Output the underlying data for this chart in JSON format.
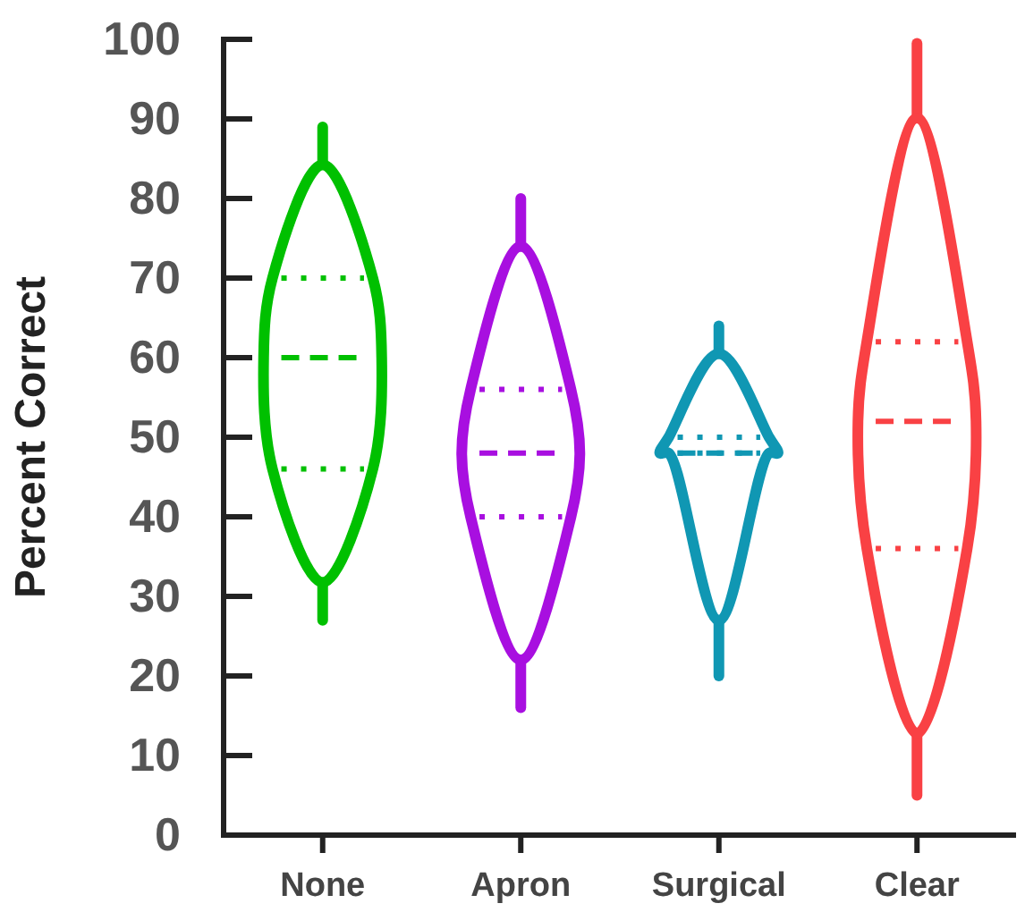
{
  "chart_data": {
    "type": "box",
    "ylabel": "Percent Correct",
    "categories": [
      "None",
      "Apron",
      "Surgical",
      "Clear"
    ],
    "colors": [
      "#00c000",
      "#a80fe0",
      "#1097b3",
      "#f94144"
    ],
    "boxes": [
      {
        "low": 27,
        "q1": 46,
        "median": 60,
        "q3": 70,
        "high": 89
      },
      {
        "low": 16,
        "q1": 40,
        "median": 48,
        "q3": 56,
        "high": 80
      },
      {
        "low": 20,
        "q1": 48,
        "median": 48,
        "q3": 50,
        "high": 64
      },
      {
        "low": 5,
        "q1": 36,
        "median": 52,
        "q3": 62,
        "high": 99.5
      }
    ],
    "ylim": [
      0,
      100
    ],
    "yticks": [
      0,
      10,
      20,
      30,
      40,
      50,
      60,
      70,
      80,
      90,
      100
    ],
    "grid": false
  }
}
